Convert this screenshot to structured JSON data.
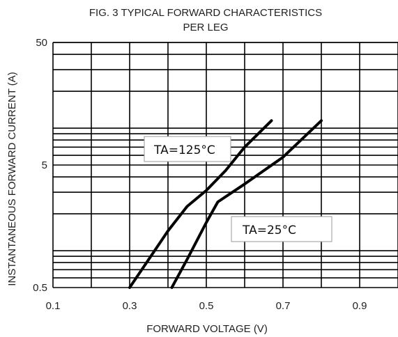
{
  "chart_data": {
    "type": "line",
    "title_line1": "FIG. 3 TYPICAL FORWARD CHARACTERISTICS",
    "title_line2": "PER LEG",
    "xlabel": "FORWARD VOLTAGE (V)",
    "ylabel": "INSTANTANEOUS FORWARD CURRENT (A)",
    "x_range": [
      0.1,
      1.0
    ],
    "y_range": [
      0.5,
      50
    ],
    "y_scale": "log",
    "grid": true,
    "x_ticks": [
      0.1,
      0.3,
      0.5,
      0.7,
      0.9
    ],
    "x_tick_labels": [
      "0.1",
      "0.3",
      "0.5",
      "0.7",
      "0.9"
    ],
    "y_ticks": [
      0.5,
      5,
      50
    ],
    "y_tick_labels": [
      "0.5",
      "5",
      "50"
    ],
    "series": [
      {
        "name": "TA=125°C",
        "x": [
          0.3,
          0.35,
          0.4,
          0.45,
          0.5,
          0.55,
          0.6,
          0.67
        ],
        "y": [
          0.5,
          0.85,
          1.45,
          2.3,
          3.1,
          4.5,
          7.0,
          11.5
        ]
      },
      {
        "name": "TA=25°C",
        "x": [
          0.41,
          0.45,
          0.5,
          0.53,
          0.6,
          0.7,
          0.8
        ],
        "y": [
          0.5,
          0.85,
          1.7,
          2.5,
          3.5,
          5.8,
          11.5
        ]
      }
    ]
  },
  "annotations": {
    "hot_label": "TA=125°C",
    "cold_label": "TA=25°C"
  }
}
